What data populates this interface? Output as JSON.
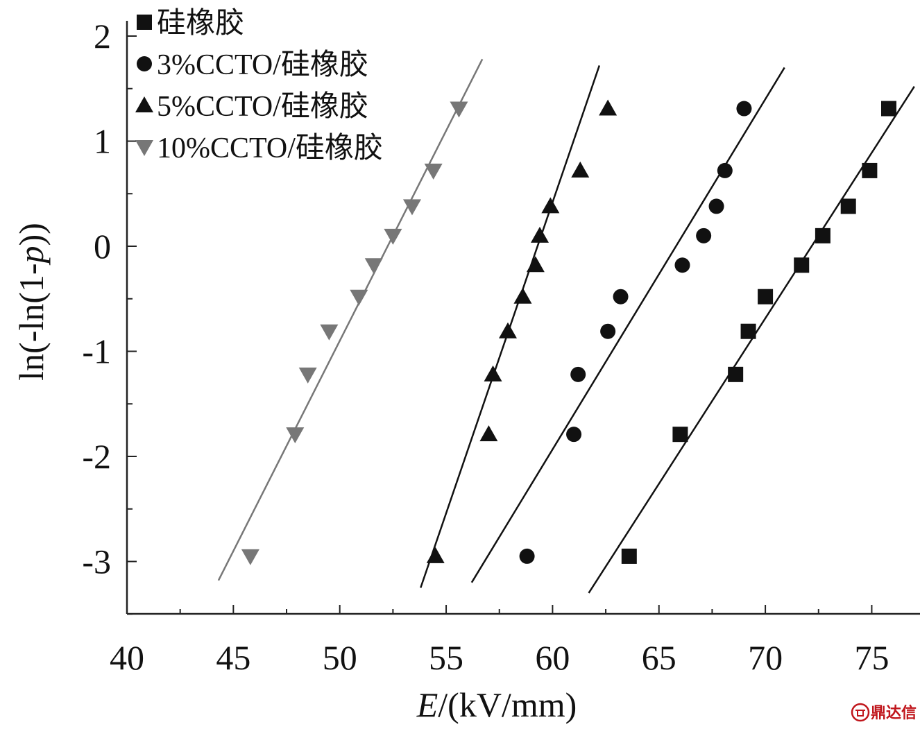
{
  "chart_data": {
    "type": "scatter",
    "xlabel_italic": "E",
    "xlabel_rest": "/(kV/mm)",
    "ylabel_prefix": "ln(-ln(1-",
    "ylabel_italic": "p",
    "ylabel_suffix": "))",
    "xlim": [
      40,
      77
    ],
    "ylim": [
      -3.5,
      2.2
    ],
    "xticks": [
      40,
      45,
      50,
      55,
      60,
      65,
      70,
      75
    ],
    "yticks": [
      -3,
      -2,
      -1,
      0,
      1,
      2
    ],
    "grid": false,
    "legend_position": "top-left",
    "series": [
      {
        "name": "硅橡胶",
        "marker": "square",
        "color": "#111111",
        "x": [
          63.6,
          66.0,
          68.6,
          69.2,
          70.0,
          71.7,
          72.7,
          73.9,
          74.9,
          75.8
        ],
        "y": [
          -2.95,
          -1.79,
          -1.22,
          -0.81,
          -0.48,
          -0.18,
          0.1,
          0.38,
          0.72,
          1.31
        ],
        "fit": [
          [
            61.7,
            -3.3
          ],
          [
            77.0,
            1.52
          ]
        ]
      },
      {
        "name": "3%CCTO/硅橡胶",
        "marker": "circle",
        "color": "#111111",
        "x": [
          58.8,
          61.0,
          61.2,
          62.6,
          63.2,
          66.1,
          67.1,
          67.7,
          68.1,
          69.0
        ],
        "y": [
          -2.95,
          -1.79,
          -1.22,
          -0.81,
          -0.48,
          -0.18,
          0.1,
          0.38,
          0.72,
          1.31
        ],
        "fit": [
          [
            56.2,
            -3.2
          ],
          [
            70.9,
            1.7
          ]
        ]
      },
      {
        "name": "5%CCTO/硅橡胶",
        "marker": "triangle-up",
        "color": "#111111",
        "x": [
          54.5,
          57.0,
          57.2,
          57.9,
          58.6,
          59.2,
          59.4,
          59.9,
          61.3,
          62.6
        ],
        "y": [
          -2.95,
          -1.79,
          -1.22,
          -0.81,
          -0.48,
          -0.18,
          0.1,
          0.38,
          0.72,
          1.31
        ],
        "fit": [
          [
            53.8,
            -3.25
          ],
          [
            62.2,
            1.72
          ]
        ]
      },
      {
        "name": "10%CCTO/硅橡胶",
        "marker": "triangle-down",
        "color": "#777777",
        "x": [
          45.8,
          47.9,
          48.5,
          49.5,
          50.9,
          51.6,
          52.5,
          53.4,
          54.4,
          55.6
        ],
        "y": [
          -2.95,
          -1.79,
          -1.22,
          -0.81,
          -0.48,
          -0.18,
          0.1,
          0.38,
          0.72,
          1.31
        ],
        "fit": [
          [
            44.3,
            -3.18
          ],
          [
            56.7,
            1.78
          ]
        ]
      }
    ]
  },
  "watermark": {
    "text": "鼎达信",
    "color": "#c0151b"
  }
}
